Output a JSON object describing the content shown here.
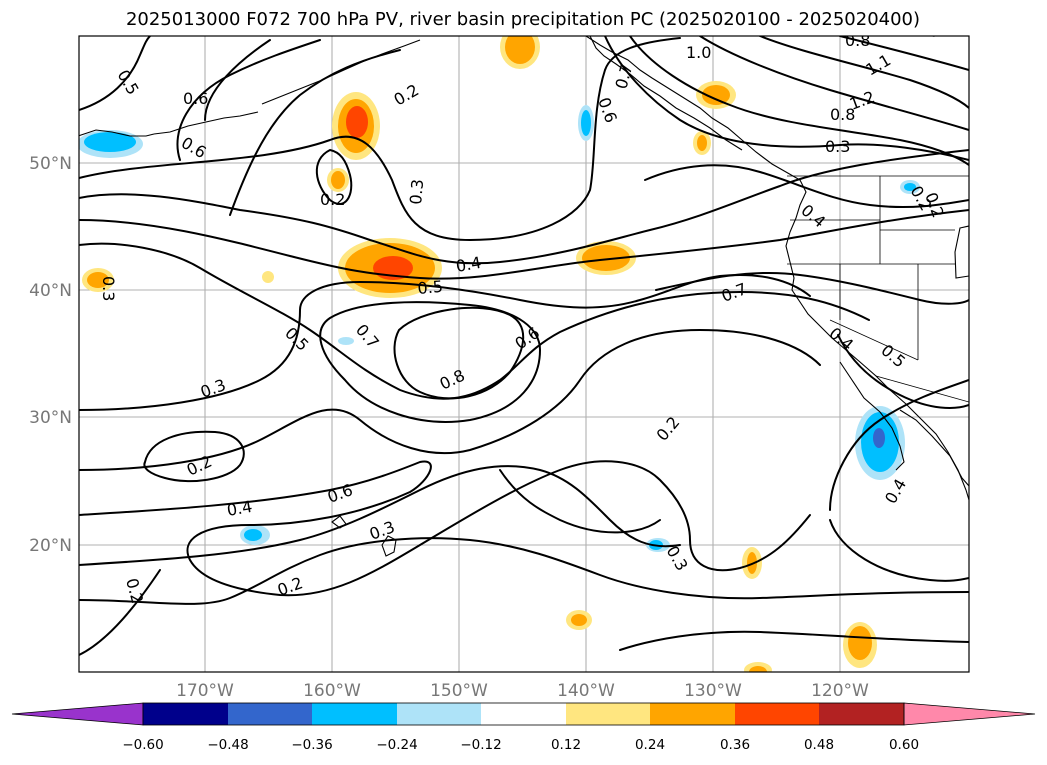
{
  "title": "2025013000 F072 700 hPa PV, river basin precipitation PC (2025020100 - 2025020400)",
  "lat_labels": [
    "50°N",
    "40°N",
    "30°N",
    "20°N"
  ],
  "lon_labels": [
    "170°W",
    "160°W",
    "150°W",
    "140°W",
    "130°W",
    "120°W"
  ],
  "colorbar": {
    "ticks": [
      "−0.60",
      "−0.48",
      "−0.36",
      "−0.24",
      "−0.12",
      "0.12",
      "0.24",
      "0.36",
      "0.48",
      "0.60"
    ],
    "colors": [
      "#9933cc",
      "#00008b",
      "#3366cc",
      "#00bfff",
      "#aee3f8",
      "#ffffff",
      "#ffe680",
      "#ffa500",
      "#ff4500",
      "#b22222",
      "#ff88aa"
    ]
  },
  "contour_labels": [
    "0.5",
    "0.6",
    "0.6",
    "0.2",
    "0.3",
    "0.2",
    "1.0",
    "0.7",
    "0.6",
    "0.8",
    "1.2",
    "1.1",
    "0.8",
    "0.3",
    "0.7",
    "0.2",
    "0.4",
    "0.4",
    "0.5",
    "0.7",
    "0.6",
    "0.3",
    "0.7",
    "0.4",
    "0.5",
    "0.8",
    "0.3",
    "0.2",
    "0.5",
    "0.2",
    "0.6",
    "0.4",
    "0.3",
    "0.2",
    "0.2",
    "0.3",
    "0.2",
    "0.4"
  ]
}
